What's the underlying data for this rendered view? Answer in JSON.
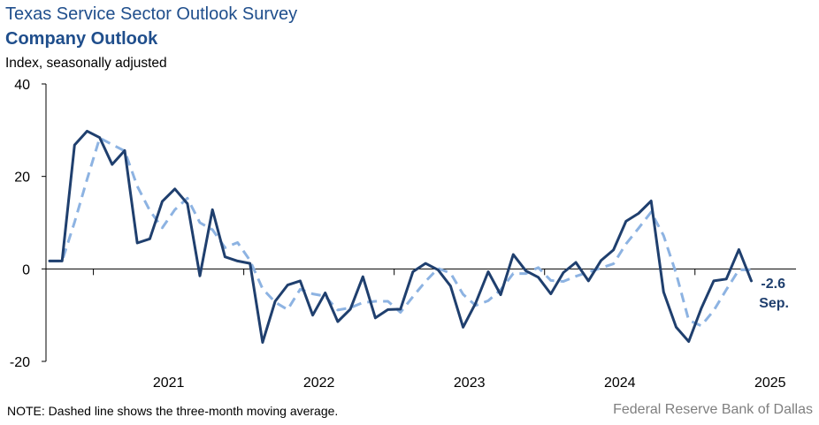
{
  "header": {
    "title": "Texas Service Sector Outlook Survey",
    "subtitle": "Company Outlook",
    "units": "Index, seasonally adjusted"
  },
  "footer": {
    "note": "NOTE: Dashed line shows the three-month moving average.",
    "source": "Federal Reserve Bank of Dallas"
  },
  "colors": {
    "series": "#1f3f6e",
    "moving_average": "#8db3e2",
    "axis": "#000000",
    "callout": "#1f3f6e"
  },
  "chart_data": {
    "type": "line",
    "title": "Company Outlook",
    "ylabel": "Index, seasonally adjusted",
    "ylim": [
      -20,
      40
    ],
    "yticks": [
      -20,
      0,
      20,
      40
    ],
    "grid": false,
    "x_start": "2020-09",
    "x_end": "2025-09",
    "xtick_labels": [
      "2021",
      "2022",
      "2023",
      "2024",
      "2025"
    ],
    "series": [
      {
        "style": "solid",
        "values": [
          1.7,
          1.7,
          26.8,
          29.8,
          28.4,
          22.6,
          25.6,
          5.6,
          6.5,
          14.6,
          17.3,
          14.1,
          -1.5,
          12.8,
          2.6,
          1.7,
          1.2,
          -15.9,
          -7.0,
          -3.5,
          -2.6,
          -10.0,
          -5.2,
          -11.4,
          -8.7,
          -1.7,
          -10.6,
          -8.8,
          -8.7,
          -0.6,
          1.2,
          -0.2,
          -3.7,
          -12.6,
          -7.4,
          -0.6,
          -5.6,
          3.1,
          -0.4,
          -1.8,
          -5.4,
          -0.8,
          1.4,
          -2.6,
          1.8,
          4.1,
          10.3,
          12.0,
          14.7,
          -5.0,
          -12.6,
          -15.7,
          -8.6,
          -2.6,
          -2.2,
          4.2,
          -2.6
        ]
      },
      {
        "style": "dashed",
        "values": [
          1.7,
          1.7,
          10.1,
          19.4,
          28.3,
          26.9,
          25.5,
          17.9,
          12.6,
          8.9,
          12.8,
          15.3,
          10.0,
          8.5,
          4.6,
          5.7,
          1.8,
          -4.3,
          -7.2,
          -8.8,
          -4.4,
          -5.4,
          -5.9,
          -8.9,
          -8.4,
          -7.3,
          -7.0,
          -7.0,
          -9.4,
          -6.0,
          -2.7,
          0.1,
          -0.9,
          -5.5,
          -7.9,
          -6.9,
          -4.5,
          -1.0,
          -1.0,
          0.3,
          -2.5,
          -2.7,
          -1.6,
          -0.7,
          0.2,
          1.1,
          5.4,
          8.8,
          12.3,
          7.2,
          -1.0,
          -11.1,
          -12.3,
          -9.0,
          -4.5,
          -0.2,
          -0.2
        ]
      }
    ],
    "last_value_label": "-2.6",
    "last_month_label": "Sep."
  }
}
